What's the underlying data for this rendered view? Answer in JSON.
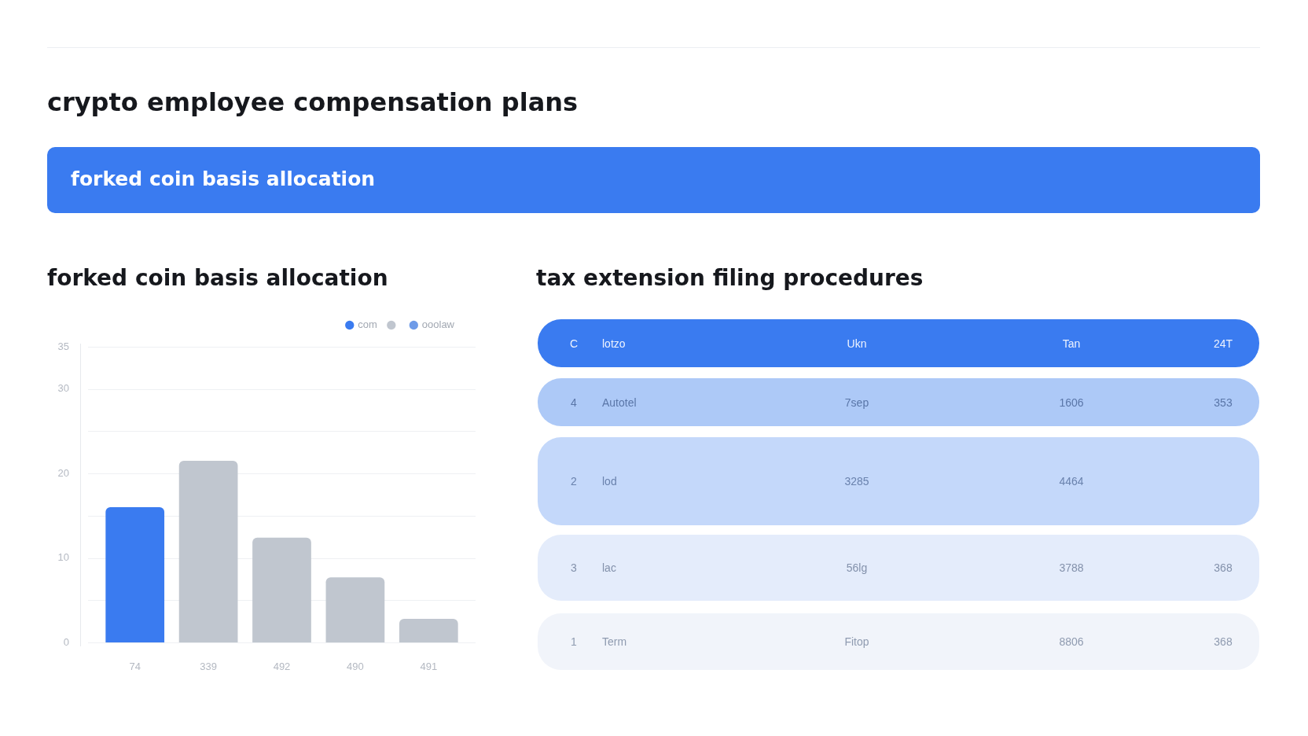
{
  "chart_data": [
    {
      "type": "other",
      "title": "crypto employee compensation plans",
      "subtitle": "forked coin basis allocation"
    },
    {
      "type": "bar",
      "title": "forked coin basis allocation",
      "categories": [
        "74",
        "339",
        "492",
        "490",
        "491"
      ],
      "series": [
        {
          "name": "com",
          "color": "#3a7bf0",
          "values": [
            16,
            null,
            null,
            null,
            null
          ]
        },
        {
          "color": "#c0c6cf",
          "values": [
            null,
            21.5,
            12.4,
            7.7,
            2.8
          ]
        },
        {
          "name": "ooolaw",
          "color": "#6e9be8",
          "values": [
            null,
            null,
            null,
            null,
            null
          ]
        }
      ],
      "ylim": [
        0,
        35
      ],
      "yticks": [
        0,
        {
          "value": 5,
          "label": null
        },
        10,
        {
          "value": 15,
          "label": null
        },
        20,
        {
          "value": 25,
          "label": null
        },
        30,
        35
      ],
      "grid": "y",
      "legend": "top right"
    },
    {
      "type": "other",
      "title": "tax extension filing procedures",
      "annotations": [
        "C",
        "lotzo",
        "Ukn",
        "Tan",
        "24T",
        "4",
        "Autotel",
        "7sep",
        "1606",
        "353",
        "2",
        "lod",
        "3285",
        "4464",
        null,
        "3",
        "lac",
        "56lg",
        "3788",
        "368",
        "1",
        "Term",
        "Fitop",
        "8806",
        "368"
      ]
    }
  ]
}
